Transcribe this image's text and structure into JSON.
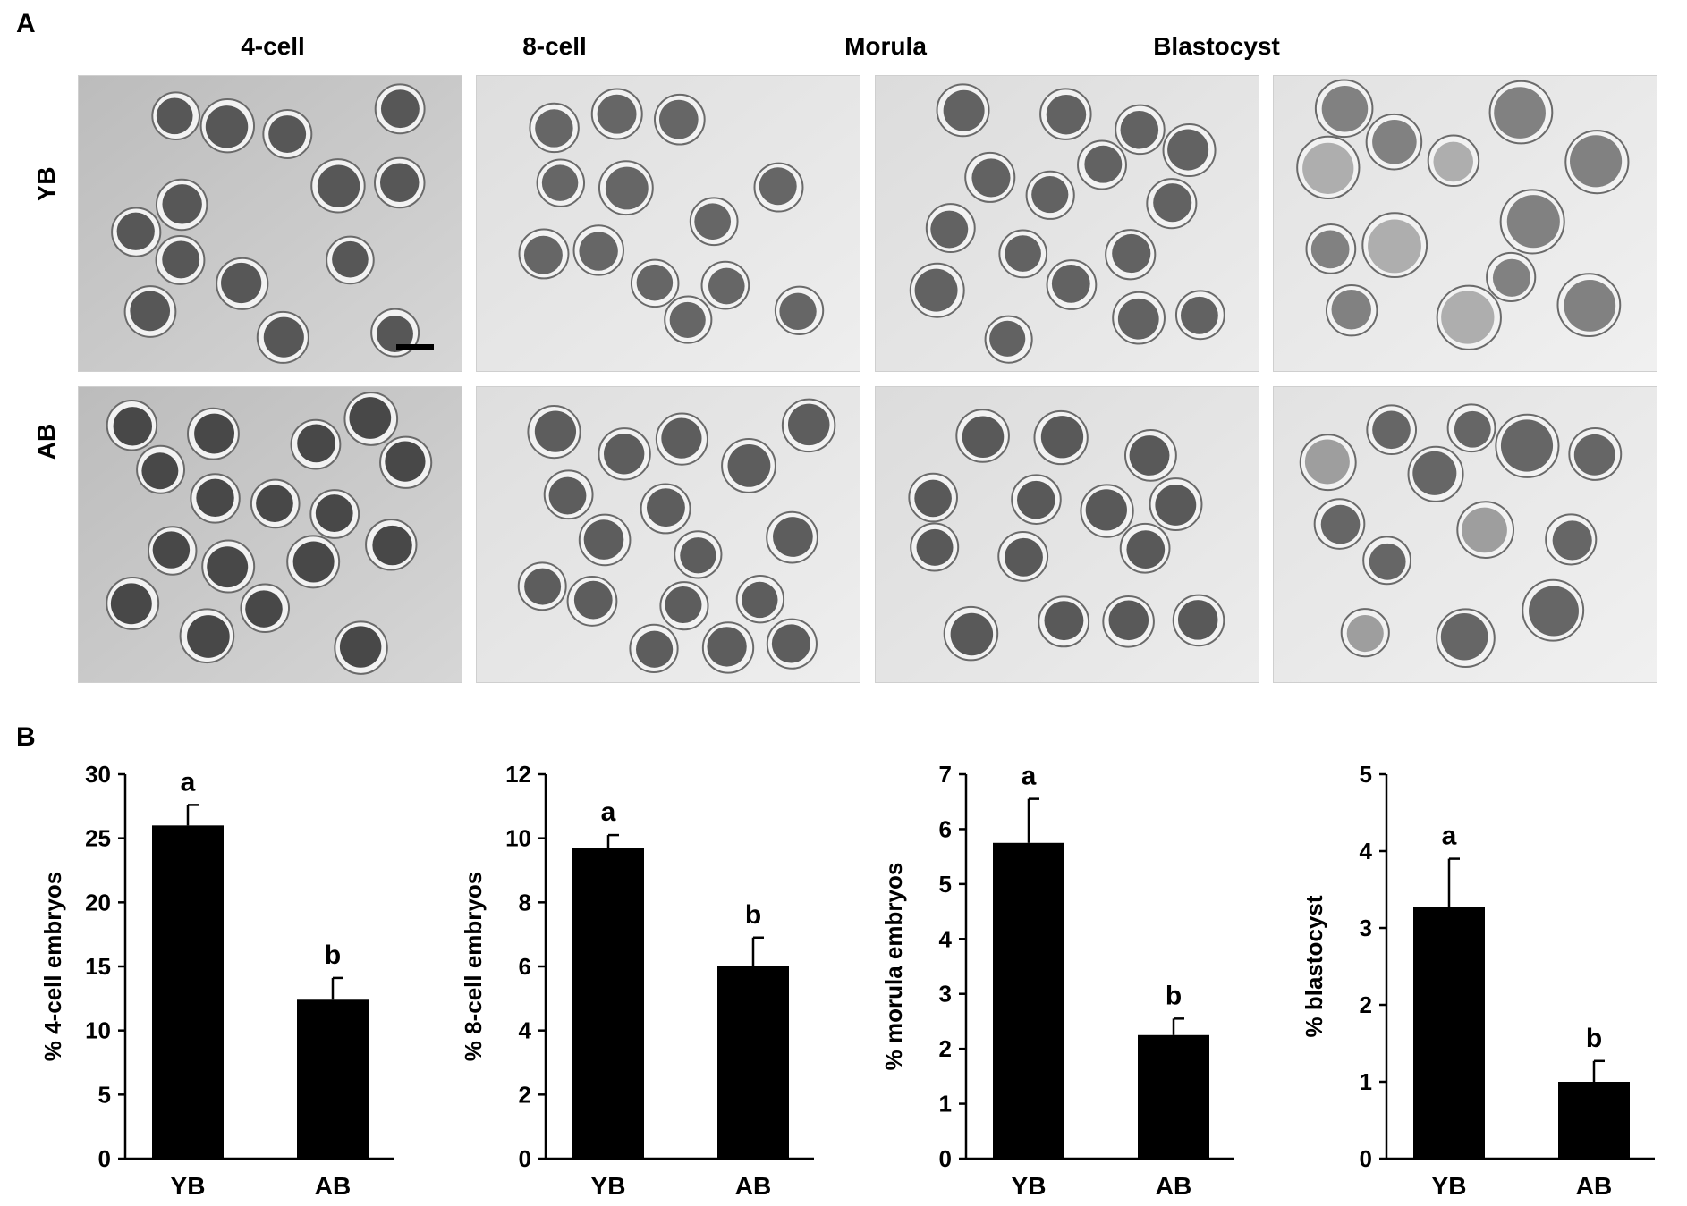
{
  "panel_labels": {
    "a": "A",
    "b": "B"
  },
  "micrographs": {
    "columns": [
      "4-cell",
      "8-cell",
      "Morula",
      "Blastocyst"
    ],
    "rows": [
      "YB",
      "AB"
    ]
  },
  "chart_data": [
    {
      "type": "bar",
      "categories": [
        "YB",
        "AB"
      ],
      "values": [
        26.0,
        12.4
      ],
      "errors": [
        1.6,
        1.7
      ],
      "sig_letters": [
        "a",
        "b"
      ],
      "ylabel": "% 4-cell embryos",
      "ylim": [
        0,
        30
      ],
      "yticks": [
        0,
        5,
        10,
        15,
        20,
        25,
        30
      ],
      "bar_color": "#000000"
    },
    {
      "type": "bar",
      "categories": [
        "YB",
        "AB"
      ],
      "values": [
        9.7,
        6.0
      ],
      "errors": [
        0.4,
        0.9
      ],
      "sig_letters": [
        "a",
        "b"
      ],
      "ylabel": "% 8-cell embryos",
      "ylim": [
        0,
        12
      ],
      "yticks": [
        0,
        2,
        4,
        6,
        8,
        10,
        12
      ],
      "bar_color": "#000000"
    },
    {
      "type": "bar",
      "categories": [
        "YB",
        "AB"
      ],
      "values": [
        5.75,
        2.25
      ],
      "errors": [
        0.8,
        0.3
      ],
      "sig_letters": [
        "a",
        "b"
      ],
      "ylabel": "% morula embryos",
      "ylim": [
        0,
        7
      ],
      "yticks": [
        0,
        1,
        2,
        3,
        4,
        5,
        6,
        7
      ],
      "bar_color": "#000000"
    },
    {
      "type": "bar",
      "categories": [
        "YB",
        "AB"
      ],
      "values": [
        3.27,
        1.0
      ],
      "errors": [
        0.63,
        0.27
      ],
      "sig_letters": [
        "a",
        "b"
      ],
      "ylabel": "% blastocyst",
      "ylim": [
        0,
        5
      ],
      "yticks": [
        0,
        1,
        2,
        3,
        4,
        5
      ],
      "bar_color": "#000000"
    }
  ]
}
